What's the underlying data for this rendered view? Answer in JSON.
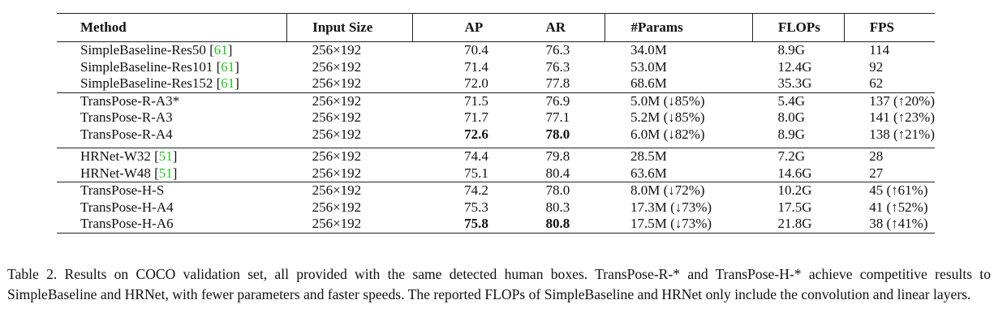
{
  "table": {
    "headers": [
      "Method",
      "Input Size",
      "AP",
      "AR",
      "#Params",
      "FLOPs",
      "FPS"
    ],
    "groups": [
      [
        {
          "method": "SimpleBaseline-Res50 ",
          "cite": "61",
          "input": "256×192",
          "ap": "70.4",
          "ar": "76.3",
          "params": "34.0M",
          "flops": "8.9G",
          "fps": "114"
        },
        {
          "method": "SimpleBaseline-Res101 ",
          "cite": "61",
          "input": "256×192",
          "ap": "71.4",
          "ar": "76.3",
          "params": "53.0M",
          "flops": "12.4G",
          "fps": "92"
        },
        {
          "method": "SimpleBaseline-Res152 ",
          "cite": "61",
          "input": "256×192",
          "ap": "72.0",
          "ar": "77.8",
          "params": "68.6M",
          "flops": "35.3G",
          "fps": "62"
        }
      ],
      [
        {
          "method": "TransPose-R-A3*",
          "input": "256×192",
          "ap": "71.5",
          "ar": "76.9",
          "params": "5.0M (↓85%)",
          "flops": "5.4G",
          "fps": "137 (↑20%)"
        },
        {
          "method": "TransPose-R-A3",
          "input": "256×192",
          "ap": "71.7",
          "ar": "77.1",
          "params": "5.2M (↓85%)",
          "flops": "8.0G",
          "fps": "141 (↑23%)"
        },
        {
          "method": "TransPose-R-A4",
          "input": "256×192",
          "ap": "72.6",
          "ar": "78.0",
          "params": "6.0M (↓82%)",
          "flops": "8.9G",
          "fps": "138 (↑21%)",
          "bold": true
        }
      ],
      [
        {
          "method": "HRNet-W32 ",
          "cite": "51",
          "input": "256×192",
          "ap": "74.4",
          "ar": "79.8",
          "params": "28.5M",
          "flops": "7.2G",
          "fps": "28"
        },
        {
          "method": "HRNet-W48 ",
          "cite": "51",
          "input": "256×192",
          "ap": "75.1",
          "ar": "80.4",
          "params": "63.6M",
          "flops": "14.6G",
          "fps": "27"
        }
      ],
      [
        {
          "method": "TransPose-H-S",
          "input": "256×192",
          "ap": "74.2",
          "ar": "78.0",
          "params": "8.0M (↓72%)",
          "flops": "10.2G",
          "fps": "45 (↑61%)"
        },
        {
          "method": "TransPose-H-A4",
          "input": "256×192",
          "ap": "75.3",
          "ar": "80.3",
          "params": "17.3M (↓73%)",
          "flops": "17.5G",
          "fps": "41 (↑52%)"
        },
        {
          "method": "TransPose-H-A6",
          "input": "256×192",
          "ap": "75.8",
          "ar": "80.8",
          "params": "17.5M (↓73%)",
          "flops": "21.8G",
          "fps": "38 (↑41%)",
          "bold": true
        }
      ]
    ]
  },
  "caption": "Table 2. Results on COCO validation set, all provided with the same detected human boxes. TransPose-R-* and TransPose-H-* achieve competitive results to SimpleBaseline and HRNet, with fewer parameters and faster speeds. The reported FLOPs of SimpleBaseline and HRNet only include the convolution and linear layers."
}
